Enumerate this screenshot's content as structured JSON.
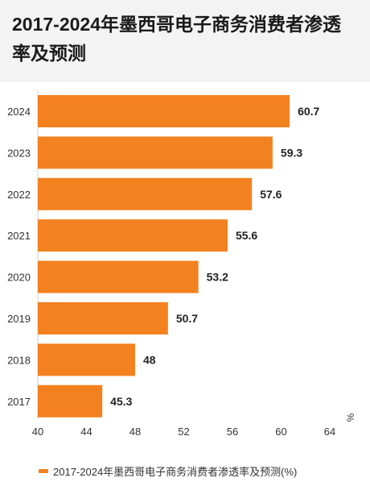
{
  "page": {
    "title": "2017-2024年墨西哥电子商务消费者渗透率及预测"
  },
  "colors": {
    "bar": "#f2811f",
    "header_bg": "#f3f3f3",
    "axis_text": "#333333",
    "value_text": "#222222"
  },
  "chart_data": {
    "type": "bar",
    "orientation": "horizontal",
    "categories": [
      "2024",
      "2023",
      "2022",
      "2021",
      "2020",
      "2019",
      "2018",
      "2017"
    ],
    "series": [
      {
        "name": "2017-2024年墨西哥电子商务消费者渗透率及预测(%)",
        "values": [
          60.7,
          59.3,
          57.6,
          55.6,
          53.2,
          50.7,
          48,
          45.3
        ],
        "labels": [
          "60.7",
          "59.3",
          "57.6",
          "55.6",
          "53.2",
          "50.7",
          "48",
          "45.3"
        ]
      }
    ],
    "x_ticks": [
      "40",
      "44",
      "48",
      "52",
      "56",
      "60",
      "64"
    ],
    "xlim": [
      40,
      64
    ],
    "x_unit": "%",
    "grid": false,
    "legend_position": "bottom-left"
  }
}
